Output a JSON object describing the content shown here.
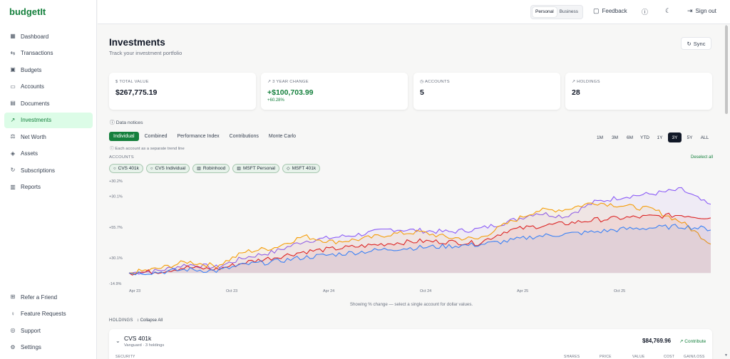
{
  "app": {
    "logo": "budgetIt"
  },
  "sidebar": {
    "items": [
      {
        "label": "Dashboard",
        "icon": "grid-icon"
      },
      {
        "label": "Transactions",
        "icon": "arrows-icon"
      },
      {
        "label": "Budgets",
        "icon": "wallet-icon"
      },
      {
        "label": "Accounts",
        "icon": "card-icon"
      },
      {
        "label": "Documents",
        "icon": "document-icon"
      },
      {
        "label": "Investments",
        "icon": "trend-icon",
        "active": true
      },
      {
        "label": "Net Worth",
        "icon": "scale-icon"
      },
      {
        "label": "Assets",
        "icon": "cube-icon"
      },
      {
        "label": "Subscriptions",
        "icon": "repeat-icon"
      },
      {
        "label": "Reports",
        "icon": "report-icon"
      }
    ],
    "bottom": [
      {
        "label": "Refer a Friend",
        "icon": "gift-icon"
      },
      {
        "label": "Feature Requests",
        "icon": "bulb-icon"
      },
      {
        "label": "Support",
        "icon": "help-circle-icon"
      },
      {
        "label": "Settings",
        "icon": "gear-icon"
      }
    ]
  },
  "topbar": {
    "mode_personal": "Personal",
    "mode_business": "Business",
    "feedback": "Feedback",
    "sign_out": "Sign out"
  },
  "page": {
    "title": "Investments",
    "subtitle": "Track your investment portfolio",
    "sync": "Sync"
  },
  "cards": [
    {
      "label": "TOTAL VALUE",
      "value": "$267,775.19",
      "icon": "dollar-icon"
    },
    {
      "label": "3 YEAR CHANGE",
      "value": "+$100,703.99",
      "sub": "+60.28%",
      "icon": "trend-up-icon"
    },
    {
      "label": "ACCOUNTS",
      "value": "5",
      "icon": "clock-icon"
    },
    {
      "label": "HOLDINGS",
      "value": "28",
      "icon": "trend-up-icon"
    }
  ],
  "notices": "Data notices",
  "tabs": [
    "Individual",
    "Combined",
    "Performance Index",
    "Contributions",
    "Monte Carlo"
  ],
  "ranges": [
    "1M",
    "3M",
    "6M",
    "YTD",
    "1Y",
    "3Y",
    "5Y",
    "ALL"
  ],
  "hint": "Each account as a separate trend line",
  "accounts_label": "ACCOUNTS",
  "deselect": "Deselect all",
  "chips": [
    "CVS 401k",
    "CVS Individual",
    "Robinhood",
    "MSFT Personal",
    "MSFT 401k"
  ],
  "caption": "Showing % change — select a single account for dollar values.",
  "holdings": {
    "label": "HOLDINGS",
    "collapse": "Collapse All",
    "account": {
      "name": "CVS 401k",
      "meta": "Vanguard · 3 holdings",
      "amount": "$84,769.96",
      "contribute": "Contribute"
    },
    "columns": [
      "SECURITY",
      "SHARES",
      "PRICE",
      "VALUE",
      "COST",
      "GAIN/LOSS"
    ]
  },
  "chart_data": {
    "type": "line",
    "ylabel_ticks": [
      "+30.2%",
      "+30.1%",
      "+55.7%",
      "+30.1%",
      "-14.9%"
    ],
    "xticks": [
      "Apr 23",
      "Oct 23",
      "Apr 24",
      "Oct 24",
      "Apr 25",
      "Oct 25"
    ],
    "ylim": [
      -14.9,
      130.2
    ],
    "series": [
      {
        "color": "#8b5cf6",
        "values": [
          0,
          3,
          12,
          8,
          22,
          30,
          45,
          50,
          55,
          62,
          60,
          58,
          62,
          72,
          85,
          80,
          100,
          108,
          112,
          118,
          95
        ]
      },
      {
        "color": "#f59e0b",
        "values": [
          0,
          6,
          16,
          10,
          30,
          36,
          52,
          44,
          48,
          55,
          58,
          50,
          48,
          70,
          88,
          90,
          100,
          95,
          90,
          72,
          42
        ]
      },
      {
        "color": "#dc2626",
        "values": [
          0,
          2,
          8,
          5,
          15,
          22,
          30,
          34,
          38,
          42,
          45,
          44,
          42,
          60,
          66,
          70,
          75,
          78,
          80,
          82,
          78
        ]
      },
      {
        "color": "#3b82f6",
        "values": [
          0,
          1,
          5,
          3,
          12,
          16,
          22,
          26,
          30,
          34,
          36,
          38,
          40,
          45,
          52,
          55,
          58,
          62,
          64,
          66,
          62
        ]
      }
    ]
  }
}
